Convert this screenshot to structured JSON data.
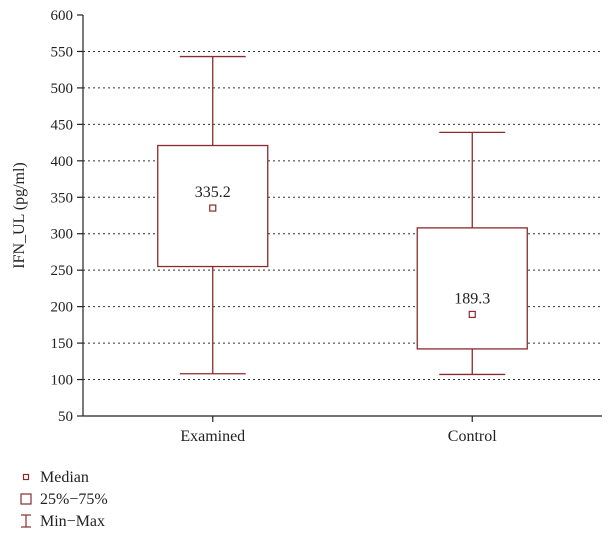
{
  "chart_data": {
    "type": "boxplot",
    "ylabel": "IFN_UL (pg/ml)",
    "xlabel": "",
    "ylim": [
      50,
      600
    ],
    "yticks": [
      50,
      100,
      150,
      200,
      250,
      300,
      350,
      400,
      450,
      500,
      550,
      600
    ],
    "grid": "horizontal-dotted",
    "categories": [
      "Examined",
      "Control"
    ],
    "boxes": [
      {
        "category": "Examined",
        "min": 108,
        "q1": 255,
        "median": 335.2,
        "q3": 421,
        "max": 543,
        "median_label": "335.2"
      },
      {
        "category": "Control",
        "min": 107,
        "q1": 142,
        "median": 189.3,
        "q3": 308,
        "max": 439,
        "median_label": "189.3"
      }
    ],
    "legend": [
      {
        "symbol": "median",
        "label": "Median"
      },
      {
        "symbol": "box",
        "label": "25%−75%"
      },
      {
        "symbol": "whisker",
        "label": "Min−Max"
      }
    ],
    "legend_position": "bottom-left",
    "color": "#8b2a2e"
  }
}
